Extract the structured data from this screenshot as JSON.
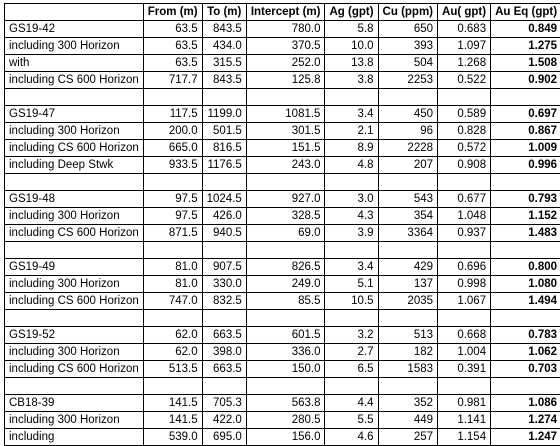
{
  "columns": [
    "",
    "From (m)",
    "To (m)",
    "Intercept (m)",
    "Ag (gpt)",
    "Cu (ppm)",
    "Au( gpt)",
    "Au Eq (gpt)"
  ],
  "groups": [
    {
      "rows": [
        [
          "GS19-42",
          "63.5",
          "843.5",
          "780.0",
          "5.8",
          "650",
          "0.683",
          "0.849"
        ],
        [
          "including 300 Horizon",
          "63.5",
          "434.0",
          "370.5",
          "10.0",
          "393",
          "1.097",
          "1.275"
        ],
        [
          "with",
          "63.5",
          "315.5",
          "252.0",
          "13.8",
          "504",
          "1.268",
          "1.508"
        ],
        [
          "including CS 600 Horizon",
          "717.7",
          "843.5",
          "125.8",
          "3.8",
          "2253",
          "0.522",
          "0.902"
        ]
      ]
    },
    {
      "rows": [
        [
          "GS19-47",
          "117.5",
          "1199.0",
          "1081.5",
          "3.4",
          "450",
          "0.589",
          "0.697"
        ],
        [
          "including 300 Horizon",
          "200.0",
          "501.5",
          "301.5",
          "2.1",
          "96",
          "0.828",
          "0.867"
        ],
        [
          "including CS 600 Horizon",
          "665.0",
          "816.5",
          "151.5",
          "8.9",
          "2228",
          "0.572",
          "1.009"
        ],
        [
          "including Deep Stwk",
          "933.5",
          "1176.5",
          "243.0",
          "4.8",
          "207",
          "0.908",
          "0.996"
        ]
      ]
    },
    {
      "rows": [
        [
          "GS19-48",
          "97.5",
          "1024.5",
          "927.0",
          "3.0",
          "543",
          "0.677",
          "0.793"
        ],
        [
          "including 300 Horizon",
          "97.5",
          "426.0",
          "328.5",
          "4.3",
          "354",
          "1.048",
          "1.152"
        ],
        [
          "including CS 600 Horizon",
          "871.5",
          "940.5",
          "69.0",
          "3.9",
          "3364",
          "0.937",
          "1.483"
        ]
      ]
    },
    {
      "rows": [
        [
          "GS19-49",
          "81.0",
          "907.5",
          "826.5",
          "3.4",
          "429",
          "0.696",
          "0.800"
        ],
        [
          "including 300 Horizon",
          "81.0",
          "330.0",
          "249.0",
          "5.1",
          "137",
          "0.998",
          "1.080"
        ],
        [
          "including CS 600 Horizon",
          "747.0",
          "832.5",
          "85.5",
          "10.5",
          "2035",
          "1.067",
          "1.494"
        ]
      ]
    },
    {
      "rows": [
        [
          "GS19-52",
          "62.0",
          "663.5",
          "601.5",
          "3.2",
          "513",
          "0.668",
          "0.783"
        ],
        [
          "including 300 Horizon",
          "62.0",
          "398.0",
          "336.0",
          "2.7",
          "182",
          "1.004",
          "1.062"
        ],
        [
          "including CS 600 Horizon",
          "513.5",
          "663.5",
          "150.0",
          "6.5",
          "1583",
          "0.391",
          "0.703"
        ]
      ]
    },
    {
      "rows": [
        [
          "CB18-39",
          "141.5",
          "705.3",
          "563.8",
          "4.4",
          "352",
          "0.981",
          "1.086"
        ],
        [
          "including 300 Horizon",
          "141.5",
          "422.0",
          "280.5",
          "5.5",
          "449",
          "1.141",
          "1.274"
        ],
        [
          "including",
          "539.0",
          "695.0",
          "156.0",
          "4.6",
          "257",
          "1.154",
          "1.247"
        ]
      ]
    }
  ]
}
